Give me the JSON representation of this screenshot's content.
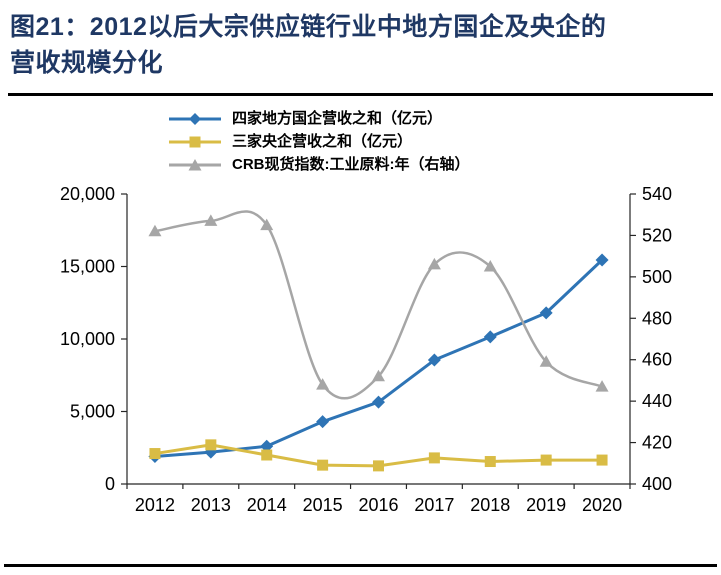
{
  "title": {
    "line1": "图21：2012以后大宗供应链行业中地方国企及央企的",
    "line2": "营收规模分化"
  },
  "colors": {
    "title": "#1F3864",
    "axis": "#262626",
    "series_blue": "#2E74B5",
    "series_gold": "#D9BC45",
    "series_gray": "#A6A6A6"
  },
  "chart_data": {
    "type": "line",
    "x": [
      2012,
      2013,
      2014,
      2015,
      2016,
      2017,
      2018,
      2019,
      2020
    ],
    "x_ticks": [
      "2012",
      "2013",
      "2014",
      "2015",
      "2016",
      "2017",
      "2018",
      "2019",
      "2020"
    ],
    "series": [
      {
        "name": "四家地方国企营收之和（亿元）",
        "axis": "left",
        "color": "#2E74B5",
        "marker": "diamond",
        "smooth": false,
        "width": 3,
        "values": [
          1900,
          2200,
          2600,
          4300,
          5650,
          8550,
          10150,
          11800,
          15450
        ]
      },
      {
        "name": "三家央企营收之和（亿元）",
        "axis": "left",
        "color": "#D9BC45",
        "marker": "square",
        "smooth": false,
        "width": 3,
        "values": [
          2100,
          2700,
          2000,
          1300,
          1250,
          1800,
          1550,
          1650,
          1650
        ]
      },
      {
        "name": "CRB现货指数:工业原料:年（右轴）",
        "axis": "right",
        "color": "#A6A6A6",
        "marker": "triangle",
        "smooth": true,
        "width": 2.5,
        "values": [
          522,
          527,
          525,
          448,
          452,
          506,
          505,
          459,
          447
        ]
      }
    ],
    "left_axis": {
      "min": 0,
      "max": 20000,
      "ticks": [
        "20,000",
        "15,000",
        "10,000",
        "5,000",
        "0"
      ]
    },
    "right_axis": {
      "min": 400,
      "max": 540,
      "ticks": [
        "540",
        "520",
        "500",
        "480",
        "460",
        "440",
        "420",
        "400"
      ]
    },
    "grid": false,
    "legend_position": "top"
  }
}
